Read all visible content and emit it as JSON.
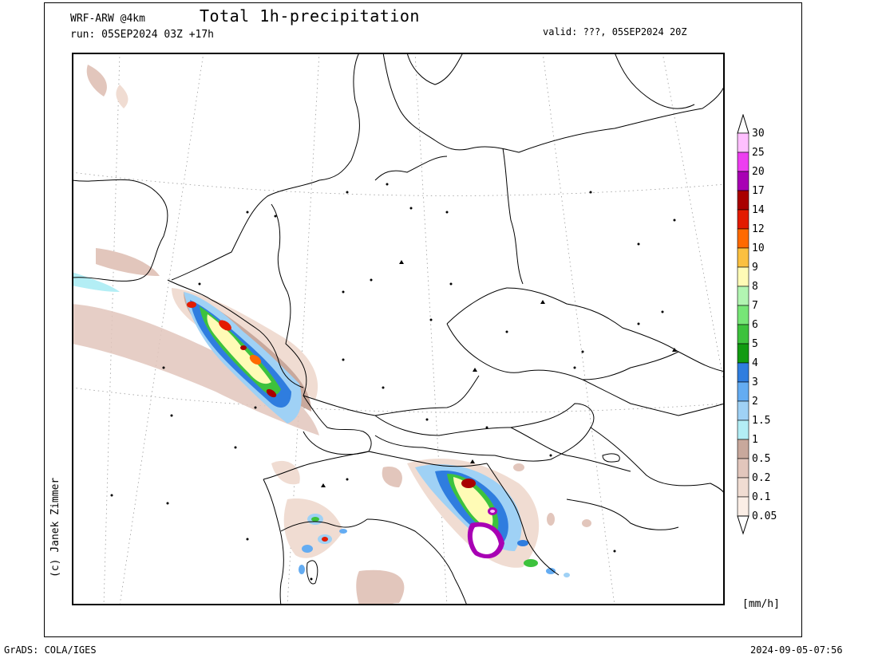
{
  "header": {
    "model": "WRF-ARW @4km",
    "title": "Total 1h-precipitation",
    "run": "run: 05SEP2024 03Z +17h",
    "valid": "valid: ???, 05SEP2024 20Z"
  },
  "copyright": "(c) Janek Zimmer",
  "footer": {
    "left": "GrADS: COLA/IGES",
    "right": "2024-09-05-07:56"
  },
  "colorbar": {
    "unit": "[mm/h]",
    "levels": [
      "0.05",
      "0.1",
      "0.2",
      "0.5",
      "1",
      "1.5",
      "2",
      "3",
      "4",
      "5",
      "6",
      "7",
      "8",
      "9",
      "10",
      "12",
      "14",
      "17",
      "20",
      "25",
      "30"
    ],
    "colors": [
      "#fbeee6",
      "#f0dcd2",
      "#e2c6bc",
      "#c8a89c",
      "#b3eef5",
      "#9fd1f5",
      "#64acf2",
      "#2f7ddf",
      "#119b11",
      "#3dc23d",
      "#77e677",
      "#b2f5b2",
      "#fffbb6",
      "#fbc040",
      "#ff6a00",
      "#e31b00",
      "#a90000",
      "#a800b4",
      "#ed3ef0",
      "#ffc0ff"
    ]
  },
  "map": {
    "land_color": "#ffffff",
    "border_color": "#000000",
    "graticule": "dotted"
  }
}
